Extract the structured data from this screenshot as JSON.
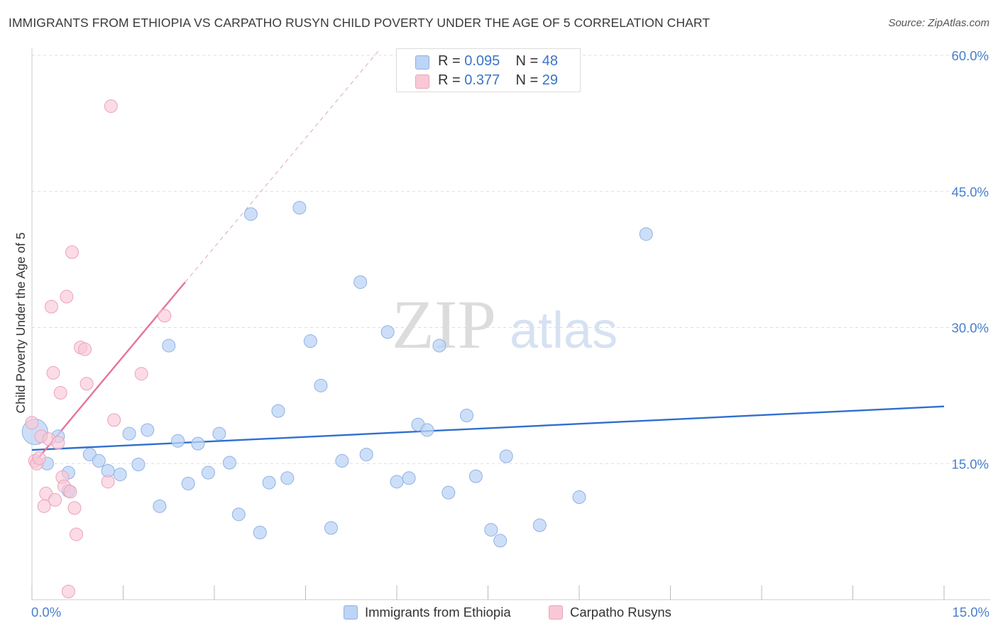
{
  "title": "IMMIGRANTS FROM ETHIOPIA VS CARPATHO RUSYN CHILD POVERTY UNDER THE AGE OF 5 CORRELATION CHART",
  "source": "Source: ZipAtlas.com",
  "watermark": {
    "part1": "ZIP",
    "part2": "atlas"
  },
  "legend": {
    "rows": [
      {
        "r_label": "R = ",
        "r_value": "0.095",
        "n_label": "N = ",
        "n_value": "48"
      },
      {
        "r_label": "R = ",
        "r_value": "0.377",
        "n_label": "N = ",
        "n_value": "29"
      }
    ]
  },
  "bottom_legend": {
    "series1": "Immigrants from Ethiopia",
    "series2": "Carpatho Rusyns"
  },
  "colors": {
    "blue_fill": "#bcd4f5",
    "blue_stroke": "#8fb1e3",
    "blue_line": "#2f6fcf",
    "pink_fill": "#f9c8d7",
    "pink_stroke": "#eba3bb",
    "pink_line": "#e8739a",
    "tick_text": "#4a7fcc",
    "grid": "#dddddd"
  },
  "chart_data": {
    "type": "scatter",
    "title": "IMMIGRANTS FROM ETHIOPIA VS CARPATHO RUSYN CHILD POVERTY UNDER THE AGE OF 5 CORRELATION CHART",
    "xlabel": "",
    "ylabel": "Child Poverty Under the Age of 5",
    "xlim": [
      0,
      15
    ],
    "ylim": [
      0,
      60
    ],
    "y_ticks": [
      {
        "value": 15,
        "label": "15.0%"
      },
      {
        "value": 30,
        "label": "30.0%"
      },
      {
        "value": 45,
        "label": "45.0%"
      },
      {
        "value": 60,
        "label": "60.0%"
      }
    ],
    "x_ticks": [
      {
        "value": 0,
        "label": "0.0%"
      },
      {
        "value": 15,
        "label": "15.0%"
      }
    ],
    "grid": true,
    "series": [
      {
        "name": "Immigrants from Ethiopia",
        "R": 0.095,
        "N": 48,
        "trend": {
          "x0": 0,
          "y0": 16.5,
          "x1": 15,
          "y1": 21.3
        },
        "points": [
          [
            0.05,
            18.5,
            2.0
          ],
          [
            0.25,
            15.0,
            1
          ],
          [
            0.43,
            18.0,
            1
          ],
          [
            0.6,
            12.0,
            1
          ],
          [
            0.6,
            14.0,
            1
          ],
          [
            0.95,
            16.0,
            1
          ],
          [
            1.1,
            15.3,
            1
          ],
          [
            1.25,
            14.2,
            1
          ],
          [
            1.45,
            13.8,
            1
          ],
          [
            1.6,
            18.3,
            1
          ],
          [
            1.75,
            14.9,
            1
          ],
          [
            1.9,
            18.7,
            1
          ],
          [
            2.1,
            10.3,
            1
          ],
          [
            2.25,
            28.0,
            1
          ],
          [
            2.4,
            17.5,
            1
          ],
          [
            2.57,
            12.8,
            1
          ],
          [
            2.73,
            17.2,
            1
          ],
          [
            2.9,
            14.0,
            1
          ],
          [
            3.08,
            18.3,
            1
          ],
          [
            3.25,
            15.1,
            1
          ],
          [
            3.4,
            9.4,
            1
          ],
          [
            3.6,
            42.5,
            1
          ],
          [
            3.75,
            7.4,
            1
          ],
          [
            3.9,
            12.9,
            1
          ],
          [
            4.05,
            20.8,
            1
          ],
          [
            4.2,
            13.4,
            1
          ],
          [
            4.4,
            43.2,
            1
          ],
          [
            4.58,
            28.5,
            1
          ],
          [
            4.75,
            23.6,
            1
          ],
          [
            4.92,
            7.9,
            1
          ],
          [
            5.1,
            15.3,
            1
          ],
          [
            5.4,
            35.0,
            1
          ],
          [
            5.5,
            16.0,
            1
          ],
          [
            5.85,
            29.5,
            1
          ],
          [
            6.0,
            13.0,
            1
          ],
          [
            6.2,
            13.4,
            1
          ],
          [
            6.35,
            19.3,
            1
          ],
          [
            6.5,
            18.7,
            1
          ],
          [
            6.7,
            28.0,
            1
          ],
          [
            6.85,
            11.8,
            1
          ],
          [
            7.15,
            20.3,
            1
          ],
          [
            7.3,
            13.6,
            1
          ],
          [
            7.55,
            7.7,
            1
          ],
          [
            7.7,
            6.5,
            1
          ],
          [
            7.8,
            15.8,
            1
          ],
          [
            8.35,
            8.2,
            1
          ],
          [
            9.0,
            11.3,
            1
          ],
          [
            10.1,
            40.3,
            1
          ]
        ]
      },
      {
        "name": "Carpatho Rusyns",
        "R": 0.377,
        "N": 29,
        "trend": {
          "x0": 0.03,
          "y0": 15.0,
          "x1": 2.52,
          "y1": 35.0
        },
        "trend_dashed": {
          "x0": 2.52,
          "y0": 35.0,
          "x1": 5.7,
          "y1": 60.5
        },
        "points": [
          [
            0.0,
            19.5,
            1
          ],
          [
            0.05,
            15.3,
            1
          ],
          [
            0.08,
            15.0,
            1
          ],
          [
            0.12,
            15.6,
            1
          ],
          [
            0.15,
            18.0,
            1
          ],
          [
            0.2,
            10.3,
            1
          ],
          [
            0.23,
            11.7,
            1
          ],
          [
            0.28,
            17.7,
            1
          ],
          [
            0.32,
            32.3,
            1
          ],
          [
            0.35,
            25.0,
            1
          ],
          [
            0.38,
            11.0,
            1
          ],
          [
            0.43,
            17.3,
            1
          ],
          [
            0.47,
            22.8,
            1
          ],
          [
            0.5,
            13.5,
            1
          ],
          [
            0.53,
            12.5,
            1
          ],
          [
            0.57,
            33.4,
            1
          ],
          [
            0.63,
            11.9,
            1
          ],
          [
            0.66,
            38.3,
            1
          ],
          [
            0.7,
            10.1,
            1
          ],
          [
            0.73,
            7.2,
            1
          ],
          [
            0.8,
            27.8,
            1
          ],
          [
            0.87,
            27.6,
            1
          ],
          [
            0.9,
            23.8,
            1
          ],
          [
            1.25,
            13.0,
            1
          ],
          [
            1.35,
            19.8,
            1
          ],
          [
            1.3,
            54.4,
            1
          ],
          [
            1.8,
            24.9,
            1
          ],
          [
            2.18,
            31.3,
            1
          ],
          [
            0.6,
            0.9,
            1
          ]
        ]
      }
    ]
  }
}
